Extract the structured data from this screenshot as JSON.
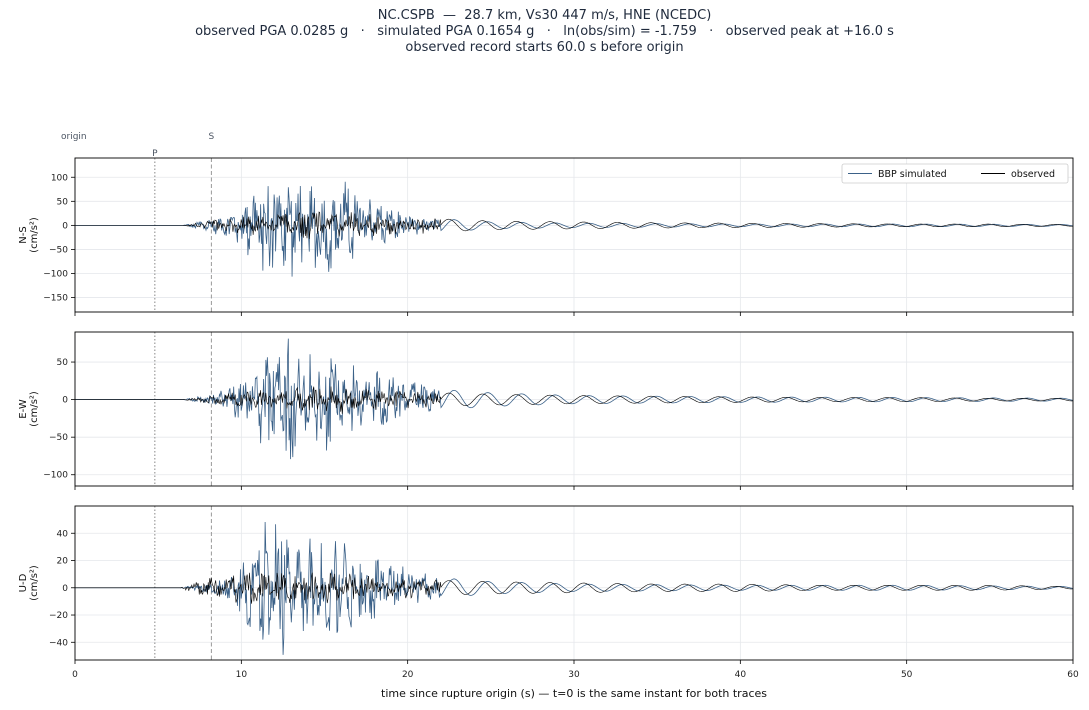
{
  "title": {
    "line1": "NC.CSPB  —  28.7 km, Vs30 447 m/s, HNE (NCEDC)",
    "line2": "observed PGA 0.0285 g   ·   simulated PGA 0.1654 g   ·   ln(obs/sim) = -1.759   ·   observed peak at +16.0 s",
    "line3": "observed record starts 60.0 s before origin"
  },
  "markers": {
    "origin_label": "origin",
    "p_label": "P",
    "s_label": "S",
    "origin_time": 0.0,
    "p_time": 4.8,
    "s_time": 8.2
  },
  "legend": {
    "simulated": "BBP simulated",
    "observed": "observed",
    "position": "top-right"
  },
  "colors": {
    "simulated": "#3b6188",
    "observed": "#000000",
    "grid": "#e5e7eb",
    "marker_p": "#888888",
    "marker_s": "#999999"
  },
  "xaxis": {
    "label": "time since rupture origin (s)   —   t=0 is the same instant for both traces",
    "ticks": [
      "0",
      "10",
      "20",
      "30",
      "40",
      "50",
      "60"
    ],
    "xlim": [
      0,
      60
    ]
  },
  "chart_data": [
    {
      "type": "line",
      "component": "N-S",
      "ylabel": "N-S\n(cm/s²)",
      "ylim": [
        -180,
        140
      ],
      "yticks": [
        100,
        50,
        0,
        -50,
        -100,
        -150
      ],
      "grid": true,
      "series": [
        {
          "name": "BBP simulated",
          "x": [
            0,
            6.5,
            8.5,
            9.5,
            10.2,
            10.8,
            11.3,
            11.5,
            12,
            12.6,
            13,
            14,
            15,
            16,
            17,
            18,
            19,
            20,
            22,
            25,
            30,
            40,
            50,
            60
          ],
          "y": [
            0,
            0,
            20,
            -30,
            60,
            -95,
            127,
            -160,
            95,
            -90,
            115,
            -85,
            100,
            -100,
            80,
            -60,
            45,
            -25,
            15,
            8,
            5,
            3,
            3,
            2
          ]
        },
        {
          "name": "observed",
          "x": [
            0,
            6.5,
            8,
            10,
            12,
            14,
            16,
            18,
            20,
            22,
            25,
            30,
            35,
            40,
            45,
            50,
            55,
            60
          ],
          "y": [
            0,
            0,
            10,
            -20,
            25,
            -30,
            30,
            -25,
            20,
            -15,
            10,
            8,
            6,
            5,
            4,
            3,
            3,
            2
          ]
        }
      ]
    },
    {
      "type": "line",
      "component": "E-W",
      "ylabel": "E-W\n(cm/s²)",
      "ylim": [
        -115,
        90
      ],
      "yticks": [
        50,
        0,
        -50,
        -100
      ],
      "grid": true,
      "series": [
        {
          "name": "BBP simulated",
          "x": [
            0,
            6.5,
            8.5,
            9.5,
            10.5,
            11,
            11.5,
            12,
            12.8,
            13.5,
            14,
            15,
            16,
            17,
            18,
            19,
            20,
            22,
            25,
            30,
            40,
            50,
            60
          ],
          "y": [
            0,
            0,
            10,
            -20,
            55,
            -50,
            -105,
            78,
            -95,
            82,
            60,
            -70,
            60,
            -50,
            40,
            -35,
            25,
            15,
            10,
            6,
            4,
            3,
            2
          ]
        },
        {
          "name": "observed",
          "x": [
            0,
            6.5,
            8,
            10,
            12,
            14,
            16,
            18,
            20,
            22,
            25,
            30,
            35,
            40,
            45,
            50,
            55,
            60
          ],
          "y": [
            0,
            0,
            5,
            -12,
            15,
            -18,
            20,
            -15,
            12,
            -10,
            8,
            6,
            5,
            4,
            3,
            3,
            2,
            2
          ]
        }
      ]
    },
    {
      "type": "line",
      "component": "U-D",
      "ylabel": "U-D\n(cm/s²)",
      "ylim": [
        -53,
        60
      ],
      "yticks": [
        40,
        20,
        0,
        -20,
        -40
      ],
      "grid": true,
      "series": [
        {
          "name": "BBP simulated",
          "x": [
            0,
            6.3,
            8.5,
            9.5,
            10.5,
            11,
            11.5,
            12,
            12.5,
            13,
            14,
            15,
            16,
            17,
            18,
            19,
            20,
            22,
            25,
            30,
            40,
            50,
            60
          ],
          "y": [
            0,
            0,
            5,
            -10,
            35,
            -40,
            53,
            -47,
            50,
            -35,
            42,
            -35,
            38,
            -30,
            25,
            -20,
            15,
            8,
            5,
            3,
            2,
            2,
            1
          ]
        },
        {
          "name": "observed",
          "x": [
            0,
            6.3,
            8,
            10,
            12,
            14,
            16,
            18,
            20,
            22,
            25,
            30,
            35,
            40,
            45,
            50,
            55,
            60
          ],
          "y": [
            0,
            0,
            8,
            -12,
            12,
            -12,
            11,
            -10,
            8,
            -6,
            5,
            4,
            3,
            3,
            2,
            2,
            2,
            1
          ]
        }
      ]
    }
  ]
}
